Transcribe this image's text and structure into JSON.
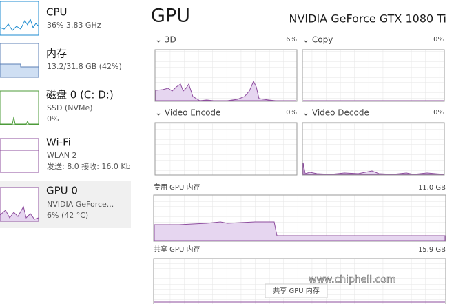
{
  "sidebar": [
    {
      "title": "CPU",
      "lines": [
        "36% 3.83 GHz"
      ]
    },
    {
      "title": "内存",
      "lines": [
        "13.2/31.8 GB (42%)"
      ]
    },
    {
      "title": "磁盘 0 (C: D:)",
      "lines": [
        "SSD (NVMe)",
        "0%"
      ]
    },
    {
      "title": "Wi-Fi",
      "lines": [
        "WLAN 2",
        "发送: 8.0 接收: 16.0 Kb"
      ]
    },
    {
      "title": "GPU 0",
      "lines": [
        "NVIDIA GeForce...",
        "6% (42 °C)"
      ]
    }
  ],
  "main": {
    "title": "GPU",
    "model": "NVIDIA GeForce GTX 1080 Ti",
    "engines": [
      {
        "name": "⌄ 3D",
        "usage": "6%"
      },
      {
        "name": "⌄ Copy",
        "usage": "0%"
      },
      {
        "name": "⌄ Video Encode",
        "usage": "0%"
      },
      {
        "name": "⌄ Video Decode",
        "usage": "0%"
      }
    ],
    "dedicated": {
      "label": "专用 GPU 内存",
      "total": "11.0 GB"
    },
    "shared": {
      "label": "共享 GPU 内存",
      "total": "15.9 GB"
    },
    "tooltip": "共享 GPU 内存"
  },
  "watermark": "www.chiphell.com"
}
